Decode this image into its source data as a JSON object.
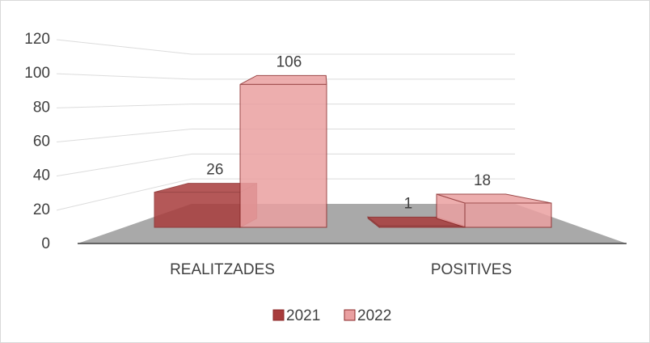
{
  "chart_data": {
    "type": "bar3d",
    "categories": [
      "REALITZADES",
      "POSITIVES"
    ],
    "series": [
      {
        "name": "2021",
        "color": "#a83c3c",
        "values": [
          26,
          1
        ]
      },
      {
        "name": "2022",
        "color": "#eaa0a1",
        "values": [
          106,
          18
        ]
      }
    ],
    "ylim": [
      0,
      120
    ],
    "yticks": [
      0,
      20,
      40,
      60,
      80,
      100,
      120
    ],
    "grid": true,
    "legend": "bottom"
  }
}
